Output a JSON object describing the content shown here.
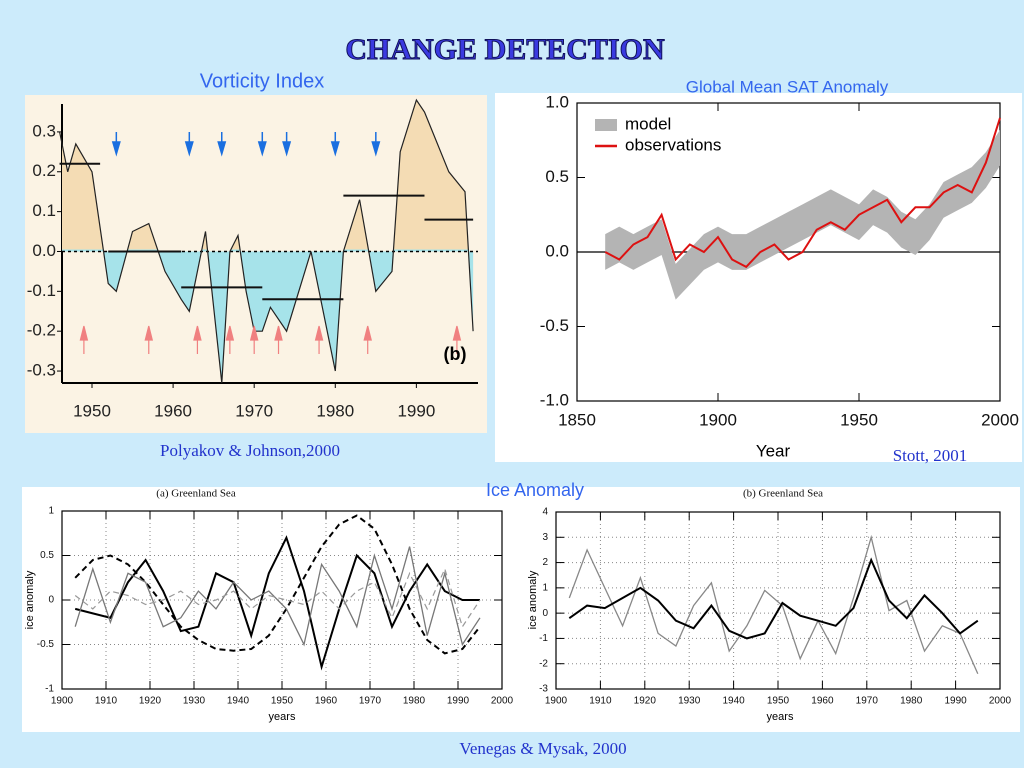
{
  "slide": {
    "title": "CHANGE DETECTION",
    "ice_header": "Ice Anomaly",
    "sources": [
      "Polyakov & Johnson,2000",
      "Stott, 2001",
      "Venegas & Mysak, 2000"
    ]
  },
  "chart_data": [
    {
      "type": "area",
      "title": "Vorticity Index",
      "annotation": "(b)",
      "x": [
        1946,
        1947,
        1948,
        1950,
        1952,
        1953,
        1955,
        1957,
        1959,
        1961,
        1962,
        1964,
        1966,
        1967,
        1968,
        1969,
        1970,
        1971,
        1972,
        1974,
        1977,
        1980,
        1981,
        1983,
        1985,
        1987,
        1988,
        1990,
        1991,
        1994,
        1996,
        1997
      ],
      "values": [
        0.3,
        0.2,
        0.27,
        0.2,
        -0.08,
        -0.1,
        0.05,
        0.07,
        -0.05,
        -0.12,
        -0.15,
        0.05,
        -0.33,
        0.0,
        0.04,
        -0.1,
        -0.2,
        -0.2,
        -0.14,
        -0.2,
        0.0,
        -0.3,
        0.0,
        0.13,
        -0.1,
        -0.05,
        0.25,
        0.38,
        0.35,
        0.2,
        0.15,
        -0.2
      ],
      "positive_color": "#f4dcb4",
      "negative_color": "#a6e3ea",
      "segments": [
        [
          1946,
          1951,
          0.22
        ],
        [
          1952,
          1961,
          0.0
        ],
        [
          1961,
          1971,
          -0.09
        ],
        [
          1971,
          1981,
          -0.12
        ],
        [
          1981,
          1991,
          0.14
        ],
        [
          1991,
          1997,
          0.08
        ]
      ],
      "down_arrows": [
        1953,
        1962,
        1966,
        1971,
        1974,
        1980,
        1985
      ],
      "down_arrow_color": "#1a6fe0",
      "up_arrows": [
        1949,
        1957,
        1963,
        1967,
        1970,
        1973,
        1978,
        1984,
        1995
      ],
      "up_arrow_color": "#f08080",
      "xlim": [
        1946.3,
        1997.6
      ],
      "ylim": [
        -0.33,
        0.37
      ],
      "xticks": [
        1950,
        1960,
        1970,
        1980,
        1990
      ],
      "yticks": [
        0.3,
        0.2,
        0.1,
        {
          "value": 0,
          "label": "0.0"
        },
        -0.1,
        -0.2,
        -0.3
      ]
    },
    {
      "type": "line",
      "title": "Global Mean SAT Anomaly",
      "xlabel": "Year",
      "legend": "upper left",
      "x": [
        1860,
        1865,
        1870,
        1875,
        1880,
        1885,
        1890,
        1895,
        1900,
        1905,
        1910,
        1915,
        1920,
        1925,
        1930,
        1935,
        1940,
        1945,
        1950,
        1955,
        1960,
        1965,
        1970,
        1975,
        1980,
        1985,
        1990,
        1995,
        2000
      ],
      "series": [
        {
          "name": "model",
          "color": "#b4b4b4",
          "values": [
            0.0,
            0.05,
            0.0,
            0.05,
            0.1,
            -0.2,
            -0.1,
            0.0,
            0.05,
            0.0,
            0.0,
            0.05,
            0.1,
            0.15,
            0.2,
            0.25,
            0.3,
            0.25,
            0.2,
            0.3,
            0.25,
            0.15,
            0.1,
            0.2,
            0.35,
            0.4,
            0.45,
            0.55,
            0.7
          ],
          "spread": 0.12
        },
        {
          "name": "observations",
          "color": "#dd1111",
          "values": [
            0.0,
            -0.05,
            0.05,
            0.1,
            0.25,
            -0.05,
            0.05,
            0.0,
            0.1,
            -0.05,
            -0.1,
            0.0,
            0.05,
            -0.05,
            0.0,
            0.15,
            0.2,
            0.15,
            0.25,
            0.3,
            0.35,
            0.2,
            0.3,
            0.3,
            0.4,
            0.45,
            0.4,
            0.6,
            0.9
          ]
        }
      ],
      "xlim": [
        1850,
        2000
      ],
      "ylim": [
        -1,
        1
      ],
      "xticks": [
        1850,
        1900,
        1950,
        2000
      ],
      "yticks": [
        {
          "value": 1,
          "label": "1.0"
        },
        0.5,
        {
          "value": 0,
          "label": "0.0"
        },
        -0.5,
        {
          "value": -1,
          "label": "-1.0"
        }
      ]
    },
    {
      "type": "line",
      "title": "(a) Greenland Sea",
      "xlabel": "years",
      "ylabel": "ice anomaly",
      "grid": true,
      "x": [
        1903,
        1907,
        1911,
        1915,
        1919,
        1923,
        1927,
        1931,
        1935,
        1939,
        1943,
        1947,
        1951,
        1955,
        1959,
        1963,
        1967,
        1971,
        1975,
        1979,
        1983,
        1987,
        1991,
        1995
      ],
      "series": [
        {
          "color": "#000000",
          "width": 2,
          "values": [
            -0.1,
            -0.15,
            -0.2,
            0.2,
            0.45,
            0.1,
            -0.35,
            -0.3,
            0.3,
            0.2,
            -0.4,
            0.3,
            0.7,
            0.1,
            -0.75,
            -0.1,
            0.5,
            0.3,
            -0.3,
            0.1,
            0.4,
            0.1,
            0.0,
            0.0
          ]
        },
        {
          "color": "#000000",
          "width": 2,
          "dash": true,
          "values": [
            0.25,
            0.45,
            0.5,
            0.4,
            0.2,
            -0.05,
            -0.3,
            -0.45,
            -0.55,
            -0.57,
            -0.55,
            -0.4,
            -0.1,
            0.25,
            0.6,
            0.85,
            0.95,
            0.8,
            0.4,
            -0.1,
            -0.45,
            -0.6,
            -0.55,
            -0.3
          ]
        },
        {
          "color": "#777777",
          "width": 1.3,
          "values": [
            -0.3,
            0.35,
            -0.25,
            0.3,
            0.2,
            -0.3,
            -0.2,
            0.1,
            -0.1,
            0.2,
            0.0,
            0.1,
            -0.1,
            -0.5,
            0.4,
            0.1,
            -0.3,
            0.5,
            -0.1,
            0.6,
            -0.4,
            0.3,
            -0.5,
            -0.2
          ]
        },
        {
          "color": "#999999",
          "width": 1.2,
          "dash": true,
          "values": [
            0.05,
            -0.1,
            0.1,
            0.05,
            -0.05,
            0.0,
            0.1,
            -0.05,
            0.0,
            0.1,
            -0.1,
            0.05,
            0.0,
            -0.05,
            0.1,
            -0.1,
            0.1,
            0.2,
            -0.2,
            0.3,
            -0.1,
            0.35,
            -0.3,
            0.0
          ]
        }
      ],
      "xlim": [
        1900,
        2000
      ],
      "ylim": [
        -1,
        1
      ],
      "xticks": [
        1900,
        1910,
        1920,
        1930,
        1940,
        1950,
        1960,
        1970,
        1980,
        1990,
        2000
      ],
      "yticks": [
        1,
        0.5,
        0,
        -0.5,
        -1
      ]
    },
    {
      "type": "line",
      "title": "(b) Greenland Sea",
      "xlabel": "years",
      "ylabel": "ice anomaly",
      "grid": true,
      "x": [
        1903,
        1907,
        1911,
        1915,
        1919,
        1923,
        1927,
        1931,
        1935,
        1939,
        1943,
        1947,
        1951,
        1955,
        1959,
        1963,
        1967,
        1971,
        1975,
        1979,
        1983,
        1987,
        1991,
        1995
      ],
      "series": [
        {
          "color": "#888888",
          "width": 1.3,
          "values": [
            0.6,
            2.5,
            1.0,
            -0.5,
            1.4,
            -0.8,
            -1.3,
            0.3,
            1.2,
            -1.5,
            -0.5,
            0.9,
            0.3,
            -1.8,
            -0.3,
            -1.6,
            0.6,
            3.0,
            0.1,
            0.5,
            -1.5,
            -0.5,
            -0.8,
            -2.4
          ]
        },
        {
          "color": "#000000",
          "width": 2,
          "values": [
            -0.2,
            0.3,
            0.2,
            0.6,
            1.0,
            0.5,
            -0.3,
            -0.6,
            0.3,
            -0.7,
            -1.0,
            -0.8,
            0.4,
            -0.1,
            -0.3,
            -0.5,
            0.2,
            2.1,
            0.5,
            -0.2,
            0.7,
            0.0,
            -0.8,
            -0.3
          ]
        }
      ],
      "xlim": [
        1900,
        2000
      ],
      "ylim": [
        -3,
        4
      ],
      "xticks": [
        1900,
        1910,
        1920,
        1930,
        1940,
        1950,
        1960,
        1970,
        1980,
        1990,
        2000
      ],
      "yticks": [
        4,
        3,
        2,
        1,
        0,
        -1,
        -2,
        -3
      ]
    }
  ]
}
